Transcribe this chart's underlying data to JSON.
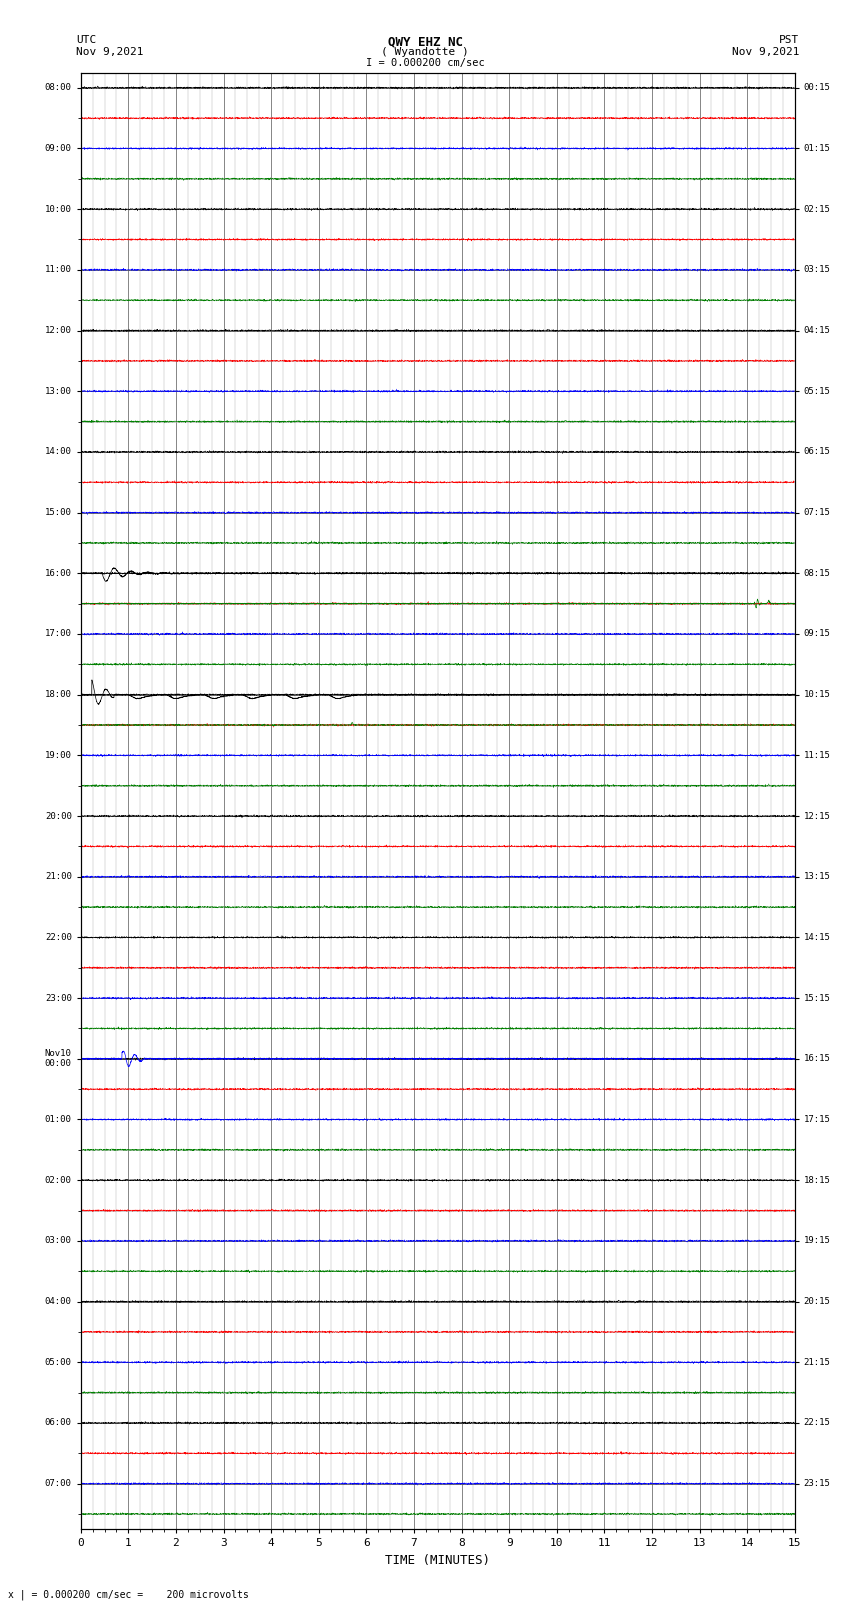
{
  "title_line1": "QWY EHZ NC",
  "title_line2": "( Wyandotte )",
  "scale_label": "I = 0.000200 cm/sec",
  "left_label_line1": "UTC",
  "left_label_line2": "Nov 9,2021",
  "right_label_line1": "PST",
  "right_label_line2": "Nov 9,2021",
  "bottom_note": "x | = 0.000200 cm/sec =    200 microvolts",
  "xlabel": "TIME (MINUTES)",
  "utc_times": [
    "08:00",
    "",
    "09:00",
    "",
    "10:00",
    "",
    "11:00",
    "",
    "12:00",
    "",
    "13:00",
    "",
    "14:00",
    "",
    "15:00",
    "",
    "16:00",
    "",
    "17:00",
    "",
    "18:00",
    "",
    "19:00",
    "",
    "20:00",
    "",
    "21:00",
    "",
    "22:00",
    "",
    "23:00",
    "",
    "Nov10\n00:00",
    "",
    "01:00",
    "",
    "02:00",
    "",
    "03:00",
    "",
    "04:00",
    "",
    "05:00",
    "",
    "06:00",
    "",
    "07:00",
    ""
  ],
  "pst_times": [
    "00:15",
    "",
    "01:15",
    "",
    "02:15",
    "",
    "03:15",
    "",
    "04:15",
    "",
    "05:15",
    "",
    "06:15",
    "",
    "07:15",
    "",
    "08:15",
    "",
    "09:15",
    "",
    "10:15",
    "",
    "11:15",
    "",
    "12:15",
    "",
    "13:15",
    "",
    "14:15",
    "",
    "15:15",
    "",
    "16:15",
    "",
    "17:15",
    "",
    "18:15",
    "",
    "19:15",
    "",
    "20:15",
    "",
    "21:15",
    "",
    "22:15",
    "",
    "23:15",
    ""
  ],
  "n_hour_rows": 24,
  "n_sub_per_hour": 2,
  "n_minutes": 15,
  "background_color": "#ffffff",
  "grid_color": "#aaaaaa",
  "heavy_grid_color": "#555555",
  "fig_width": 8.5,
  "fig_height": 16.13,
  "noise_scale": 0.04,
  "sub_colors_cycle": [
    "#000000",
    "#ff0000",
    "#0000ff",
    "#008000",
    "#000000",
    "#ff0000",
    "#0000ff",
    "#008000"
  ]
}
